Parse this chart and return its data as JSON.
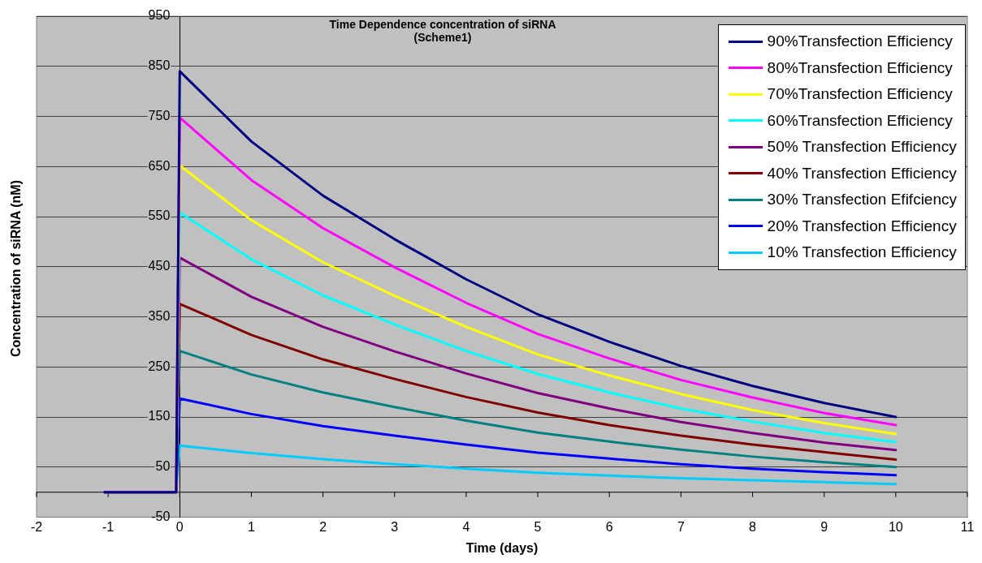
{
  "chart_data": {
    "type": "line",
    "title": "Time Dependence concentration of siRNA\n(Scheme1)",
    "xlabel": "Time (days)",
    "ylabel": "Concentration of siRNA (nM)",
    "x": [
      -1.05,
      -0.05,
      0,
      1,
      2,
      3,
      4,
      5,
      6,
      7,
      8,
      9,
      10
    ],
    "series": [
      {
        "name": "90%Transfection Efficiency",
        "color": "#000080",
        "values": [
          0,
          0,
          840,
          700,
          592,
          505,
          425,
          355,
          300,
          252,
          212,
          178,
          150
        ]
      },
      {
        "name": "80%Transfection Efficiency",
        "color": "#ff00ff",
        "values": [
          0,
          0,
          748,
          623,
          527,
          449,
          378,
          316,
          267,
          224,
          189,
          158,
          134
        ]
      },
      {
        "name": "70%Transfection Efficiency",
        "color": "#ffff00",
        "values": [
          0,
          0,
          652,
          543,
          459,
          392,
          330,
          275,
          233,
          196,
          164,
          138,
          116
        ]
      },
      {
        "name": "60%Transfection Efficiency",
        "color": "#00ffff",
        "values": [
          0,
          0,
          558,
          465,
          393,
          335,
          282,
          236,
          199,
          167,
          141,
          118,
          100
        ]
      },
      {
        "name": "50% Transfection Efficiency",
        "color": "#800080",
        "values": [
          0,
          0,
          468,
          390,
          330,
          281,
          237,
          198,
          167,
          140,
          118,
          99,
          84
        ]
      },
      {
        "name": "40% Transfection Efficiency",
        "color": "#800000",
        "values": [
          0,
          0,
          376,
          314,
          265,
          226,
          190,
          159,
          134,
          113,
          95,
          80,
          65
        ]
      },
      {
        "name": "30% Transfection Efifciency",
        "color": "#008080",
        "values": [
          0,
          0,
          282,
          235,
          199,
          170,
          143,
          119,
          101,
          85,
          71,
          60,
          50
        ]
      },
      {
        "name": "20% Transfection Efficiency",
        "color": "#0000ff",
        "values": [
          0,
          0,
          187,
          156,
          132,
          113,
          95,
          79,
          67,
          56,
          47,
          40,
          34
        ]
      },
      {
        "name": "10% Transfection Efficiency",
        "color": "#00ccff",
        "values": [
          0,
          0,
          93,
          78,
          66,
          56,
          47,
          39,
          33,
          28,
          24,
          20,
          16
        ]
      }
    ],
    "xlim": [
      -2,
      11
    ],
    "xticks": [
      -2,
      -1,
      0,
      1,
      2,
      3,
      4,
      5,
      6,
      7,
      8,
      9,
      10,
      11
    ],
    "ylim": [
      -50,
      950
    ],
    "yticks": [
      -50,
      50,
      150,
      250,
      350,
      450,
      550,
      650,
      750,
      850,
      950
    ],
    "grid": "y",
    "legend": "top right",
    "marker": "none",
    "line_style": "solid"
  }
}
